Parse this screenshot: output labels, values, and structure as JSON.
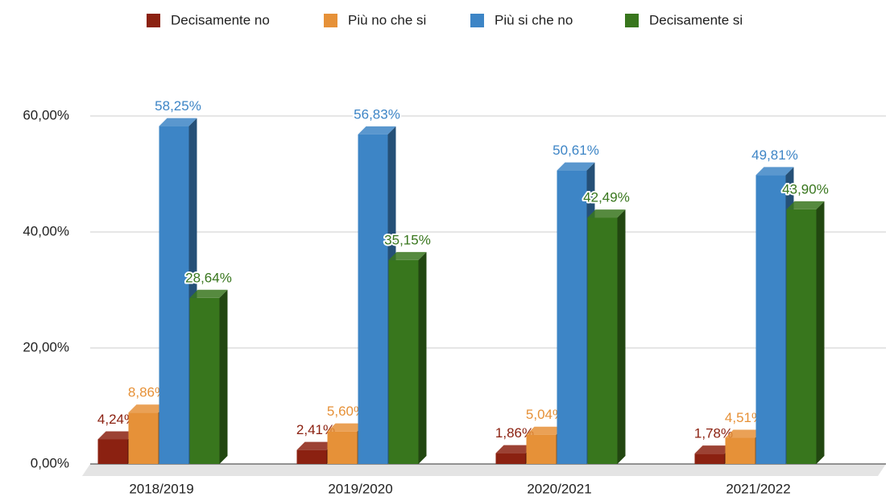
{
  "chart_data": {
    "type": "bar3d",
    "categories": [
      "2018/2019",
      "2019/2020",
      "2020/2021",
      "2021/2022"
    ],
    "series": [
      {
        "name": "Decisamente no",
        "color": "#8b2111",
        "values": [
          4.24,
          2.41,
          1.86,
          1.78
        ],
        "value_labels": [
          "4,24%",
          "2,41%",
          "1,86%",
          "1,78%"
        ]
      },
      {
        "name": "Più no che si",
        "color": "#e69138",
        "values": [
          8.86,
          5.6,
          5.04,
          4.51
        ],
        "value_labels": [
          "8,86%",
          "5,60%",
          "5,04%",
          "4,51%"
        ]
      },
      {
        "name": "Più si che no",
        "color": "#3d85c6",
        "values": [
          58.25,
          56.83,
          50.61,
          49.81
        ],
        "value_labels": [
          "58,25%",
          "56,83%",
          "50,61%",
          "49,81%"
        ]
      },
      {
        "name": "Decisamente si",
        "color": "#38761d",
        "values": [
          28.64,
          35.15,
          42.49,
          43.9
        ],
        "value_labels": [
          "28,64%",
          "35,15%",
          "42,49%",
          "43,90%"
        ]
      }
    ],
    "ylim": [
      0,
      60
    ],
    "yticks": [
      {
        "value": 0,
        "label": "0,00%"
      },
      {
        "value": 20,
        "label": "20,00%"
      },
      {
        "value": 40,
        "label": "40,00%"
      },
      {
        "value": 60,
        "label": "60,00%"
      }
    ],
    "grid": true,
    "legend": "top"
  }
}
